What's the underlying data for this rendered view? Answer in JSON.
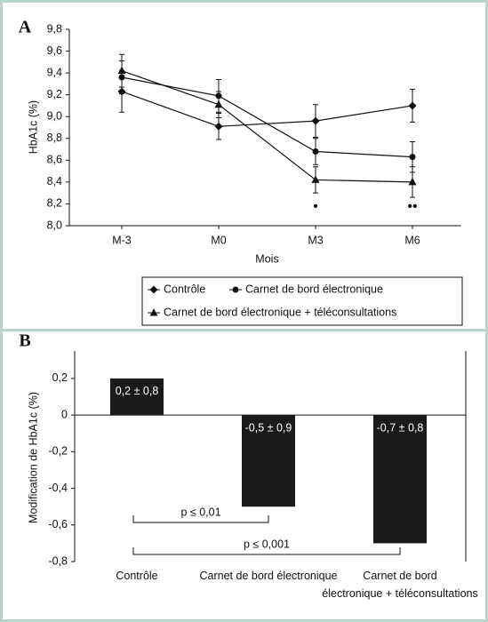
{
  "chart_data": [
    {
      "type": "line",
      "panel": "A",
      "y_label": "HbA1c (%)",
      "x_label": "Mois",
      "categories": [
        "M-3",
        "M0",
        "M3",
        "M6"
      ],
      "ylim": [
        8.0,
        9.8
      ],
      "yticks": [
        {
          "value": 8.0,
          "label": "8,0"
        },
        {
          "value": 8.2,
          "label": "8,2"
        },
        {
          "value": 8.4,
          "label": "8,4"
        },
        {
          "value": 8.6,
          "label": "8,6"
        },
        {
          "value": 8.8,
          "label": "8,8"
        },
        {
          "value": 9.0,
          "label": "9,0"
        },
        {
          "value": 9.2,
          "label": "9,2"
        },
        {
          "value": 9.4,
          "label": "9,4"
        },
        {
          "value": 9.6,
          "label": "9,6"
        },
        {
          "value": 9.8,
          "label": "9,8"
        }
      ],
      "series": [
        {
          "name": "Contrôle",
          "marker": "diamond",
          "color": "#111111",
          "values": [
            9.23,
            8.91,
            8.96,
            9.1
          ],
          "errors": [
            0.19,
            0.12,
            0.15,
            0.15
          ]
        },
        {
          "name": "Carnet de bord électronique",
          "marker": "circle",
          "color": "#111111",
          "values": [
            9.36,
            9.19,
            8.68,
            8.63
          ],
          "errors": [
            0.15,
            0.15,
            0.12,
            0.14
          ]
        },
        {
          "name": "Carnet de bord électronique + téléconsultations",
          "marker": "triangle",
          "color": "#111111",
          "values": [
            9.42,
            9.11,
            8.42,
            8.4
          ],
          "errors": [
            0.15,
            0.12,
            0.12,
            0.14
          ]
        }
      ],
      "annotations": [
        {
          "text": "•",
          "x": "M3"
        },
        {
          "text": "••",
          "x": "M6"
        }
      ]
    },
    {
      "type": "bar",
      "panel": "B",
      "y_label": "Modification de HbA1c (%)",
      "categories": [
        "Contrôle",
        "Carnet de bord électronique",
        "Carnet de bord\nélectronique + téléconsultations"
      ],
      "values": [
        0.2,
        -0.5,
        -0.7
      ],
      "value_labels": [
        "0,2 ± 0,8",
        "-0,5 ± 0,9",
        "-0,7 ± 0,8"
      ],
      "color": "#1a1a1a",
      "ylim": [
        -0.8,
        0.35
      ],
      "yticks": [
        {
          "value": -0.8,
          "label": "-0,8"
        },
        {
          "value": -0.6,
          "label": "-0,6"
        },
        {
          "value": -0.4,
          "label": "-0,4"
        },
        {
          "value": -0.2,
          "label": "-0,2"
        },
        0,
        {
          "value": 0.2,
          "label": "0,2"
        }
      ],
      "annotations": [
        {
          "text": "p ≤ 0,01",
          "from": "Contrôle",
          "to": "Carnet de bord électronique"
        },
        {
          "text": "p ≤ 0,001",
          "from": "Contrôle",
          "to": "Carnet de bord\nélectronique + téléconsultations"
        }
      ]
    }
  ]
}
